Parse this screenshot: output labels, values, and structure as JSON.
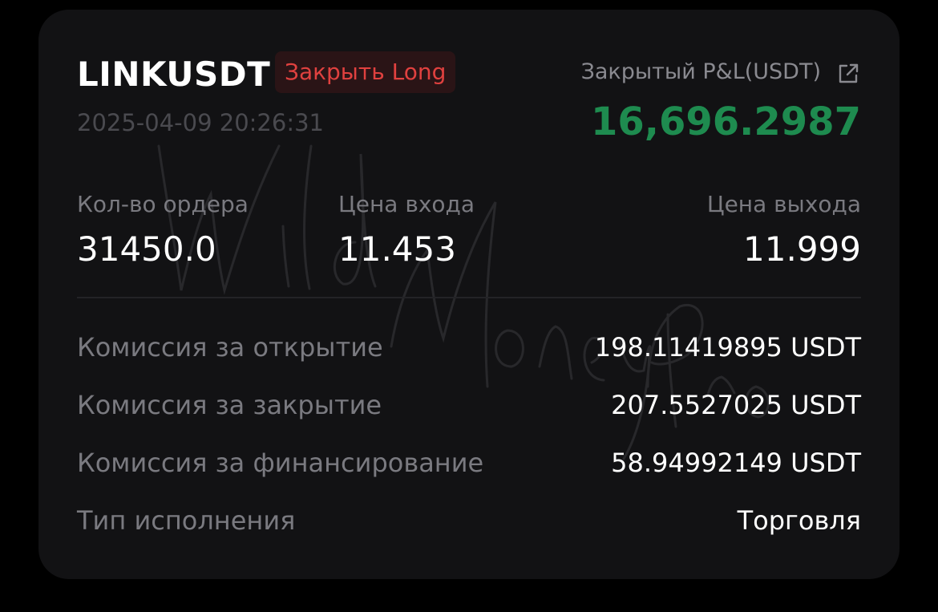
{
  "header": {
    "symbol": "LINKUSDT",
    "side_badge": "Закрыть Long",
    "timestamp": "2025-04-09 20:26:31",
    "pnl_label": "Закрытый P&L(USDT)",
    "pnl_value": "16,696.2987",
    "share_icon": "external-link-icon"
  },
  "stats": [
    {
      "label": "Кол-во ордера",
      "value": "31450.0"
    },
    {
      "label": "Цена входа",
      "value": "11.453"
    },
    {
      "label": "Цена выхода",
      "value": "11.999"
    }
  ],
  "details": [
    {
      "label": "Комиссия за открытие",
      "value": "198.11419895 USDT"
    },
    {
      "label": "Комиссия за закрытие",
      "value": "207.5527025 USDT"
    },
    {
      "label": "Комиссия за финансирование",
      "value": "58.94992149 USDT"
    },
    {
      "label": "Тип исполнения",
      "value": "Торговля"
    }
  ],
  "watermark": "Wild Money Pro",
  "colors": {
    "background": "#000000",
    "card": "#121214",
    "profit": "#1e8b4f",
    "close_long": "#e0413f",
    "badge_bg": "#2a1416",
    "muted": "#7a7a80"
  }
}
